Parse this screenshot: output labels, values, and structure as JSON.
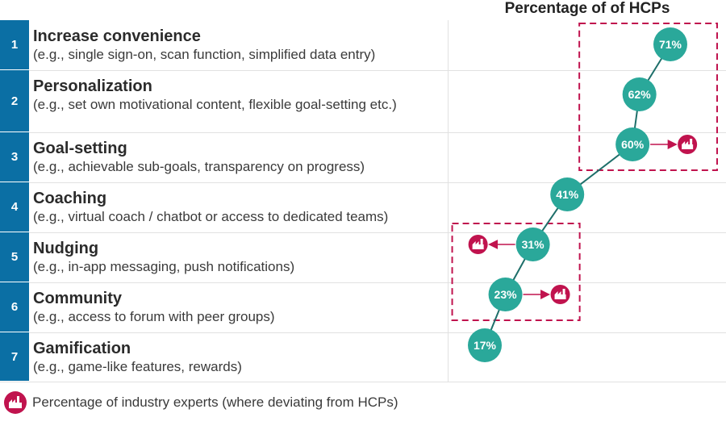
{
  "title": "Percentage of of HCPs",
  "legend": {
    "expert_label": "Percentage of industry experts (where deviating from HCPs)"
  },
  "rows": [
    {
      "num": "1",
      "title": "Increase convenience",
      "desc": "(e.g., single sign-on, scan function, simplified data entry)"
    },
    {
      "num": "2",
      "title": "Personalization",
      "desc": "(e.g., set own motivational content, flexible goal-setting etc.)"
    },
    {
      "num": "3",
      "title": "Goal-setting",
      "desc": "(e.g., achievable sub-goals, transparency on progress)"
    },
    {
      "num": "4",
      "title": "Coaching",
      "desc": "(e.g., virtual coach / chatbot or access to dedicated teams)"
    },
    {
      "num": "5",
      "title": "Nudging",
      "desc": "(e.g., in-app messaging, push notifications)"
    },
    {
      "num": "6",
      "title": "Community",
      "desc": "(e.g., access to forum with peer groups)"
    },
    {
      "num": "7",
      "title": "Gamification",
      "desc": "(e.g., game-like features, rewards)"
    }
  ],
  "chart_data": {
    "type": "scatter",
    "categories": [
      "Increase convenience",
      "Personalization",
      "Goal-setting",
      "Coaching",
      "Nudging",
      "Community",
      "Gamification"
    ],
    "series": [
      {
        "name": "HCPs",
        "values": [
          71,
          62,
          60,
          41,
          31,
          23,
          17
        ],
        "labels": [
          "71%",
          "62%",
          "60%",
          "41%",
          "31%",
          "23%",
          "17%"
        ]
      }
    ],
    "expert_deviation": [
      {
        "category": "Goal-setting",
        "direction": "higher"
      },
      {
        "category": "Nudging",
        "direction": "lower"
      },
      {
        "category": "Community",
        "direction": "higher"
      }
    ],
    "highlight_groups": [
      [
        "Increase convenience",
        "Personalization",
        "Goal-setting"
      ],
      [
        "Nudging",
        "Community"
      ]
    ],
    "colors": {
      "hcp_marker": "#2aa89a",
      "expert_marker": "#c0134e",
      "highlight_box": "#c0134e",
      "number_box": "#0b6fa4"
    }
  }
}
